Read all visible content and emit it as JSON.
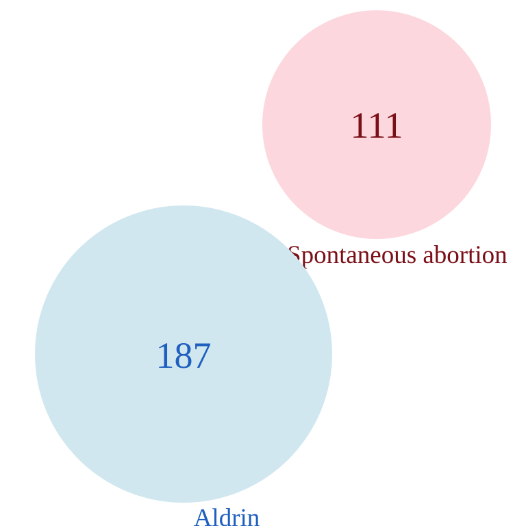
{
  "diagram": {
    "type": "venn",
    "sets": [
      {
        "label": "Spontaneous abortion",
        "count": "111",
        "fill_color": "#fcd7de",
        "text_color": "#7a0f17"
      },
      {
        "label": "Aldrin",
        "count": "187",
        "fill_color": "#d0e7ef",
        "text_color": "#1f5fbf"
      }
    ],
    "overlap_count": null
  }
}
